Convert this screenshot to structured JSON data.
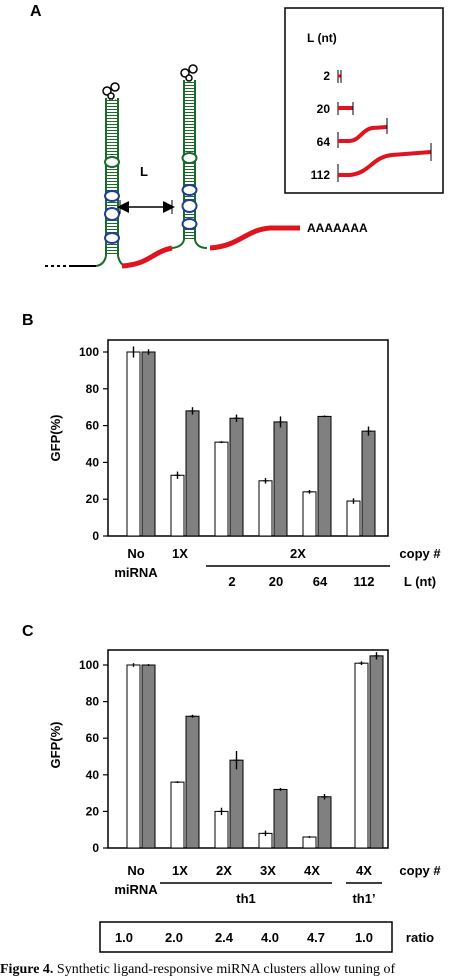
{
  "panelA": {
    "label": "A",
    "L_marker": "L",
    "polyA": "AAAAAAA",
    "legend": {
      "title": "L (nt)",
      "rows": [
        "2",
        "20",
        "64",
        "112"
      ]
    }
  },
  "panelB": {
    "label": "B",
    "ylabel": "GFP(%)",
    "yticks": [
      "0",
      "20",
      "40",
      "60",
      "80",
      "100"
    ],
    "copy_label": "copy #",
    "L_label": "L (nt)",
    "groups": {
      "no_mirna_1": "No",
      "no_mirna_2": "miRNA",
      "one_x": "1X",
      "two_x": "2X"
    },
    "L_values": [
      "2",
      "20",
      "64",
      "112"
    ]
  },
  "panelC": {
    "label": "C",
    "ylabel": "GFP(%)",
    "yticks": [
      "0",
      "20",
      "40",
      "60",
      "80",
      "100"
    ],
    "copy_label": "copy #",
    "groups": {
      "no_mirna_1": "No",
      "no_mirna_2": "miRNA",
      "copies": [
        "1X",
        "2X",
        "3X",
        "4X",
        "4X"
      ],
      "th1": "th1",
      "th1p": "th1’"
    },
    "ratio_label": "ratio",
    "ratios": [
      "1.0",
      "2.0",
      "2.4",
      "4.0",
      "4.7",
      "1.0"
    ]
  },
  "chart_data": [
    {
      "type": "bar",
      "ylabel": "GFP(%)",
      "ylim": [
        0,
        100
      ],
      "categories": [
        "No miRNA",
        "1X",
        "2X L=2",
        "2X L=20",
        "2X L=64",
        "2X L=112"
      ],
      "series": [
        {
          "color": "#ffffff",
          "values": [
            100,
            33,
            51,
            30,
            24,
            19
          ],
          "errors": [
            3,
            2,
            0.5,
            1.5,
            1,
            1.5
          ]
        },
        {
          "color": "#808080",
          "values": [
            100,
            68,
            64,
            62,
            65,
            57
          ],
          "errors": [
            1.5,
            2,
            2,
            3,
            0.5,
            2.5
          ]
        }
      ]
    },
    {
      "type": "bar",
      "ylabel": "GFP(%)",
      "ylim": [
        0,
        100
      ],
      "categories": [
        "No miRNA",
        "1X th1",
        "2X th1",
        "3X th1",
        "4X th1",
        "4X th1’"
      ],
      "series": [
        {
          "color": "#ffffff",
          "values": [
            100,
            36,
            20,
            8,
            6,
            101
          ],
          "errors": [
            1,
            0.5,
            2,
            1.5,
            0.5,
            1
          ]
        },
        {
          "color": "#808080",
          "values": [
            100,
            72,
            48,
            32,
            28,
            105
          ],
          "errors": [
            0.5,
            0.8,
            5,
            0.8,
            1.5,
            2
          ]
        }
      ]
    }
  ],
  "caption": {
    "figure": "Figure 4.",
    "text": " Synthetic ligand-responsive miRNA clusters allow tuning of"
  }
}
